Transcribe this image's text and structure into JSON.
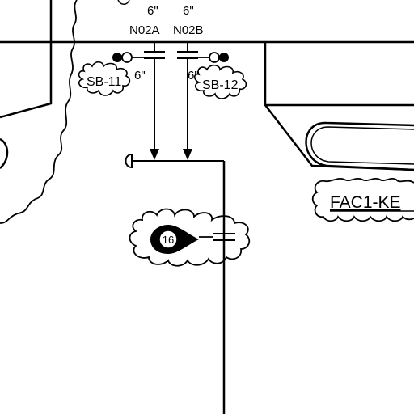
{
  "drawing": {
    "nozzles": [
      {
        "size": "6\"",
        "tag": "N02A"
      },
      {
        "size": "6\"",
        "tag": "N02B"
      }
    ],
    "side_sizes": [
      "6\"",
      "6\""
    ],
    "clouds": [
      {
        "label": "SB-11"
      },
      {
        "label": "SB-12"
      }
    ],
    "equipment_tag": "FAC1-KE",
    "callout": "16"
  }
}
